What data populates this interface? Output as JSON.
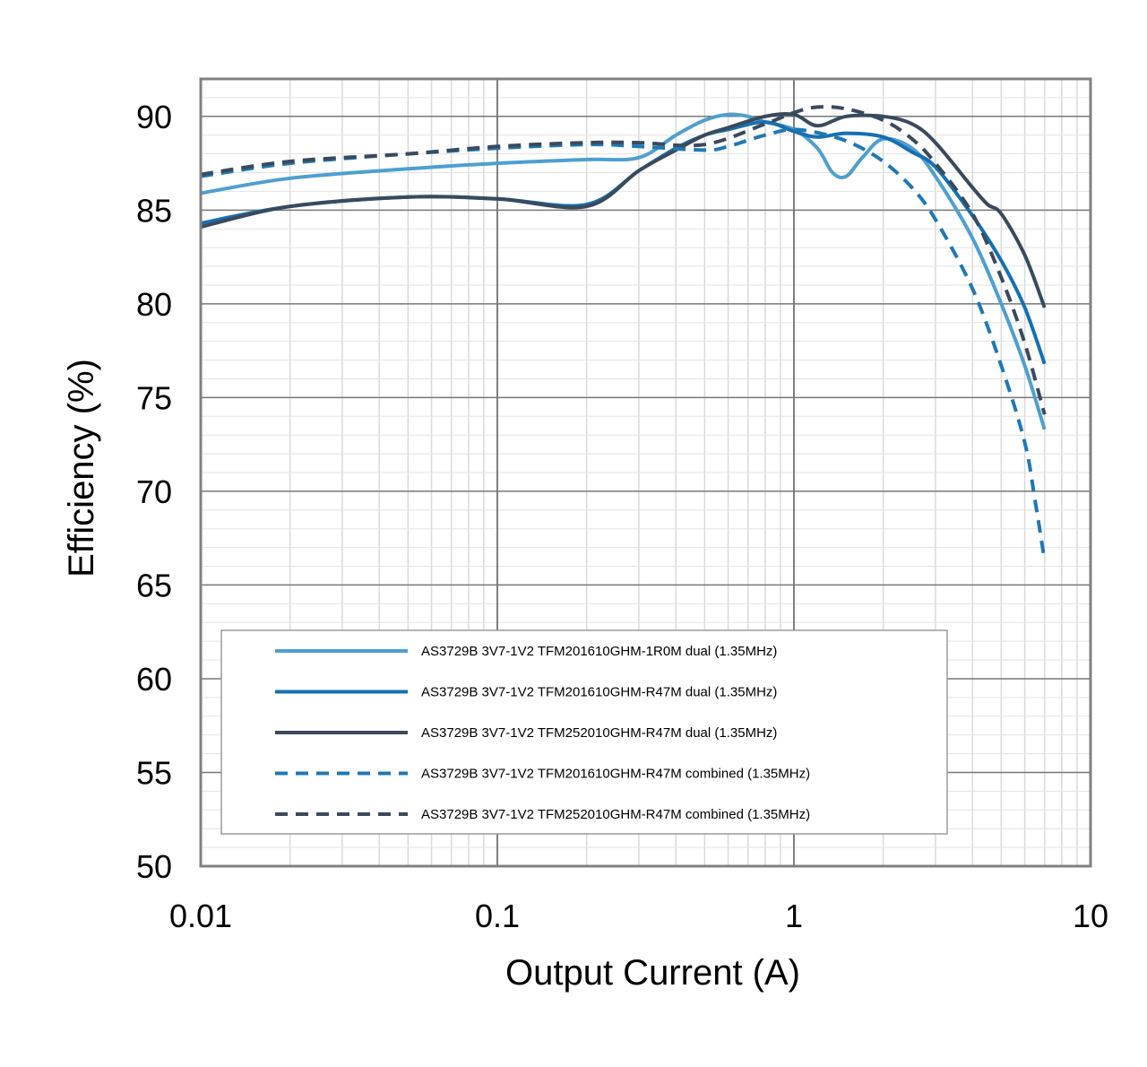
{
  "chart_data": {
    "type": "line",
    "title": "",
    "xlabel": "Output Current (A)",
    "ylabel": "Efficiency (%)",
    "x_scale": "log",
    "xlim": [
      0.01,
      10
    ],
    "ylim": [
      50,
      92
    ],
    "x_ticks": [
      0.01,
      0.1,
      1,
      10
    ],
    "x_tick_labels": [
      "0.01",
      "0.1",
      "1",
      "10"
    ],
    "y_ticks": [
      50,
      55,
      60,
      65,
      70,
      75,
      80,
      85,
      90
    ],
    "y_tick_labels": [
      "50",
      "55",
      "60",
      "65",
      "70",
      "75",
      "80",
      "85",
      "90"
    ],
    "grid": true,
    "legend_position": "bottom-center",
    "series": [
      {
        "name": "AS3729B 3V7-1V2 TFM201610GHM-1R0M dual (1.35MHz)",
        "color": "#4e9fd0",
        "dash": "solid",
        "x": [
          0.01,
          0.02,
          0.05,
          0.1,
          0.2,
          0.3,
          0.4,
          0.5,
          0.6,
          0.7,
          0.8,
          1.0,
          1.2,
          1.35,
          1.5,
          1.7,
          2.0,
          2.5,
          3.0,
          4.0,
          5.0,
          6.0,
          7.0
        ],
        "y": [
          85.9,
          86.7,
          87.2,
          87.5,
          87.7,
          87.8,
          89.0,
          89.8,
          90.1,
          90.0,
          89.7,
          89.3,
          88.3,
          87.0,
          86.8,
          87.8,
          88.8,
          88.3,
          86.8,
          83.5,
          80.0,
          76.7,
          73.3
        ]
      },
      {
        "name": "AS3729B 3V7-1V2 TFM201610GHM-R47M dual (1.35MHz)",
        "color": "#1670b3",
        "dash": "solid",
        "x": [
          0.01,
          0.02,
          0.05,
          0.1,
          0.2,
          0.3,
          0.4,
          0.5,
          0.6,
          0.8,
          1.0,
          1.2,
          1.5,
          2.0,
          2.5,
          3.0,
          4.0,
          5.0,
          6.0,
          7.0
        ],
        "y": [
          84.3,
          85.2,
          85.7,
          85.6,
          85.3,
          87.1,
          88.3,
          89.0,
          89.3,
          89.7,
          89.2,
          88.9,
          89.1,
          88.9,
          88.1,
          87.3,
          84.7,
          82.3,
          79.8,
          76.8
        ]
      },
      {
        "name": "AS3729B 3V7-1V2 TFM252010GHM-R47M dual (1.35MHz)",
        "color": "#3a4a5c",
        "dash": "solid",
        "x": [
          0.01,
          0.02,
          0.05,
          0.1,
          0.2,
          0.3,
          0.4,
          0.5,
          0.6,
          0.8,
          1.0,
          1.2,
          1.5,
          2.0,
          2.5,
          3.0,
          4.0,
          4.5,
          5.0,
          6.0,
          7.0
        ],
        "y": [
          84.1,
          85.2,
          85.7,
          85.6,
          85.2,
          87.1,
          88.2,
          89.0,
          89.4,
          90.0,
          90.1,
          89.5,
          90.0,
          90.0,
          89.6,
          88.6,
          86.2,
          85.3,
          84.8,
          82.6,
          79.8
        ]
      },
      {
        "name": "AS3729B 3V7-1V2 TFM201610GHM-R47M combined (1.35MHz)",
        "color": "#1f78b4",
        "dash": "dashed",
        "x": [
          0.01,
          0.02,
          0.05,
          0.1,
          0.2,
          0.3,
          0.5,
          0.6,
          0.8,
          1.0,
          1.3,
          1.6,
          2.0,
          2.5,
          3.0,
          4.0,
          5.0,
          6.0,
          6.5,
          7.0
        ],
        "y": [
          86.8,
          87.5,
          88.0,
          88.3,
          88.5,
          88.4,
          88.2,
          88.4,
          89.0,
          89.3,
          89.0,
          88.5,
          87.6,
          86.2,
          84.5,
          80.8,
          76.7,
          72.6,
          69.5,
          66.3
        ]
      },
      {
        "name": "AS3729B 3V7-1V2 TFM252010GHM-R47M combined (1.35MHz)",
        "color": "#3a4a5c",
        "dash": "dashed",
        "x": [
          0.01,
          0.02,
          0.05,
          0.1,
          0.2,
          0.3,
          0.5,
          0.8,
          1.0,
          1.2,
          1.5,
          2.0,
          2.5,
          3.0,
          4.0,
          5.0,
          6.0,
          7.0
        ],
        "y": [
          86.9,
          87.6,
          88.0,
          88.4,
          88.6,
          88.6,
          88.5,
          89.6,
          90.2,
          90.5,
          90.4,
          89.8,
          88.8,
          87.5,
          84.8,
          81.4,
          77.9,
          74.1
        ]
      }
    ]
  }
}
